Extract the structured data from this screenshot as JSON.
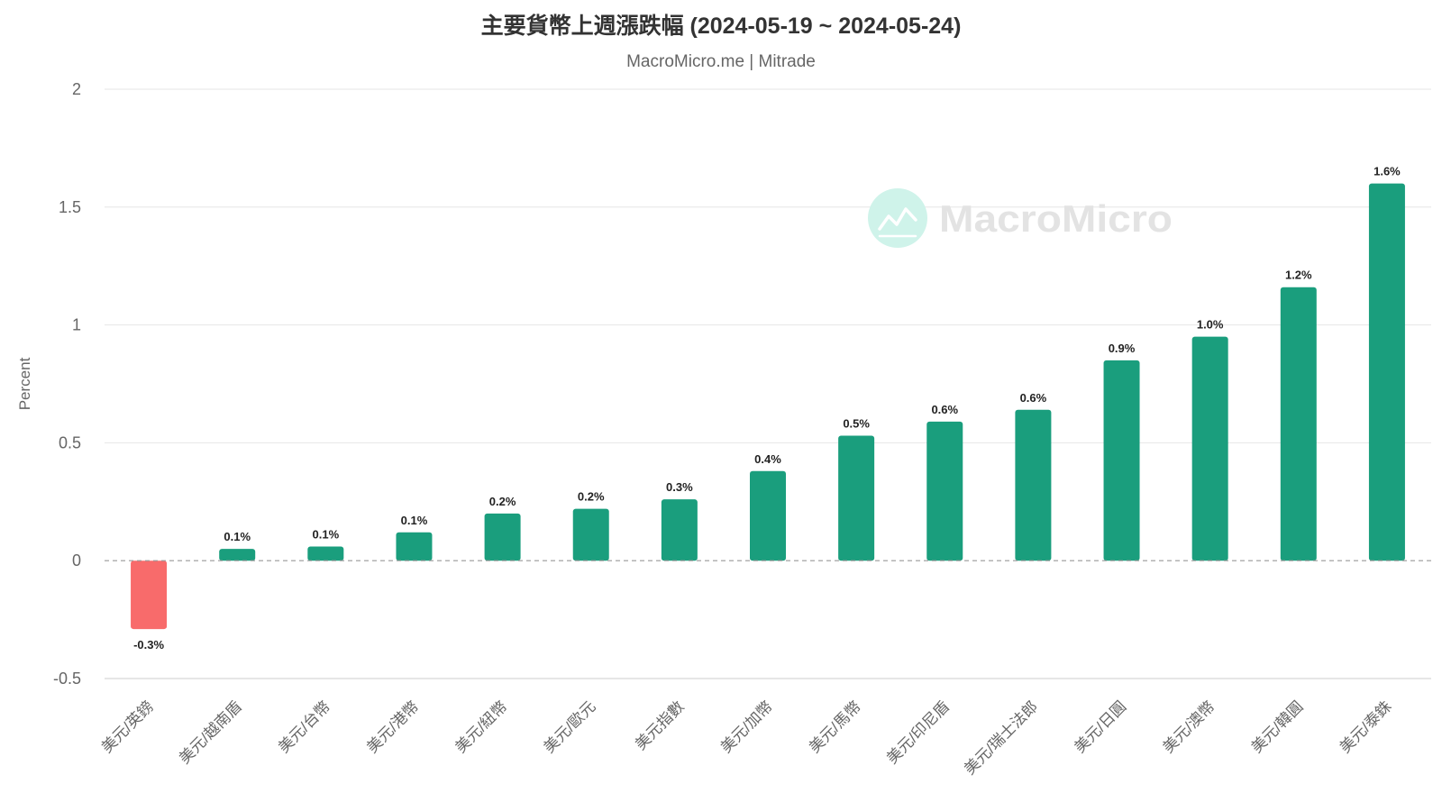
{
  "chart_data": {
    "type": "bar",
    "title": "主要貨幣上週漲跌幅 (2024-05-19 ~ 2024-05-24)",
    "subtitle": "MacroMicro.me | Mitrade",
    "xlabel": "",
    "ylabel": "Percent",
    "ylim": [
      -0.5,
      2
    ],
    "yticks": [
      -0.5,
      0,
      0.5,
      1,
      1.5,
      2
    ],
    "ytick_labels": [
      "-0.5",
      "0",
      "0.5",
      "1",
      "1.5",
      "2"
    ],
    "grid": true,
    "categories": [
      "美元/英鎊",
      "美元/越南盾",
      "美元/台幣",
      "美元/港幣",
      "美元/紐幣",
      "美元/歐元",
      "美元指數",
      "美元/加幣",
      "美元/馬幣",
      "美元/印尼盾",
      "美元/瑞士法郎",
      "美元/日圓",
      "美元/澳幣",
      "美元/韓圓",
      "美元/泰銖"
    ],
    "values": [
      -0.29,
      0.05,
      0.06,
      0.12,
      0.2,
      0.22,
      0.26,
      0.38,
      0.53,
      0.59,
      0.64,
      0.85,
      0.95,
      1.16,
      1.6
    ],
    "data_labels": [
      "-0.3%",
      "0.1%",
      "0.1%",
      "0.1%",
      "0.2%",
      "0.2%",
      "0.3%",
      "0.4%",
      "0.5%",
      "0.6%",
      "0.6%",
      "0.9%",
      "1.0%",
      "1.2%",
      "1.6%"
    ],
    "colors": {
      "positive": "#1a9e7d",
      "negative": "#f86b6b"
    }
  },
  "watermark": {
    "text": "MacroMicro",
    "icon": "macromicro-logo-icon"
  }
}
